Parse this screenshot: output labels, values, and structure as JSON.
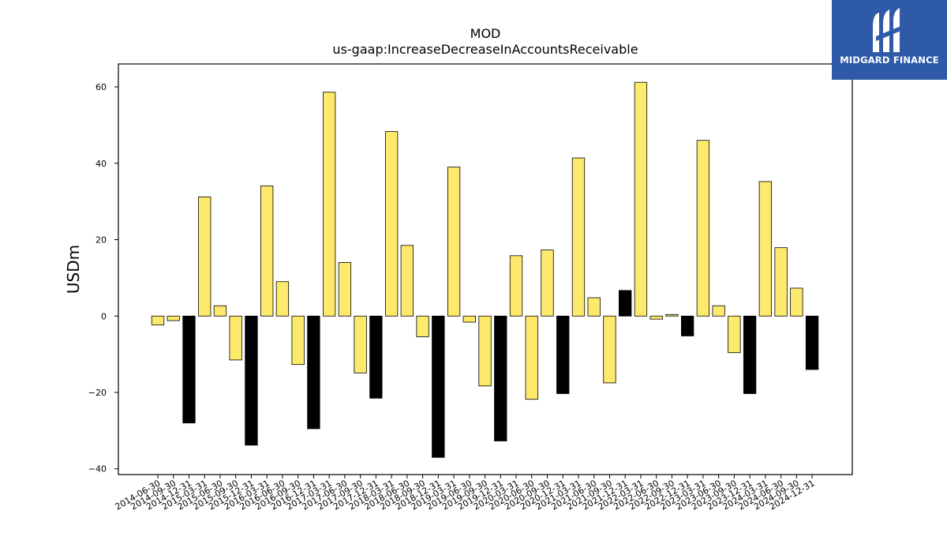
{
  "chart_data": {
    "type": "bar",
    "title": "MOD",
    "subtitle": "us-gaap:IncreaseDecreaseInAccountsReceivable",
    "xlabel": "",
    "ylabel": "USDm",
    "ylim": [
      -41.5,
      66
    ],
    "yticks": [
      -40,
      -20,
      0,
      20,
      40,
      60
    ],
    "grid": false,
    "categories": [
      "2014-06-30",
      "2014-09-30",
      "2014-12-31",
      "2015-03-31",
      "2015-06-30",
      "2015-09-30",
      "2015-12-31",
      "2016-03-31",
      "2016-06-30",
      "2016-09-30",
      "2016-12-31",
      "2017-03-31",
      "2017-06-30",
      "2017-09-30",
      "2017-12-31",
      "2018-03-31",
      "2018-06-30",
      "2018-09-30",
      "2018-12-31",
      "2019-03-31",
      "2019-06-30",
      "2019-09-30",
      "2019-12-31",
      "2020-03-31",
      "2020-06-30",
      "2020-09-30",
      "2020-12-31",
      "2021-03-31",
      "2021-06-30",
      "2021-09-30",
      "2021-12-31",
      "2022-03-31",
      "2022-06-30",
      "2022-09-30",
      "2022-12-31",
      "2023-03-31",
      "2023-06-30",
      "2023-09-30",
      "2023-12-31",
      "2024-03-31",
      "2024-06-30",
      "2024-09-30",
      "2024-12-31"
    ],
    "values": [
      -2.3,
      -1.2,
      -28,
      31.2,
      2.7,
      -11.5,
      -33.8,
      34.1,
      9,
      -12.7,
      -29.5,
      58.6,
      14,
      -14.9,
      -21.5,
      48.3,
      18.5,
      -5.4,
      -37,
      39,
      -1.6,
      -18.3,
      -32.7,
      15.8,
      -21.8,
      17.3,
      -20.3,
      41.4,
      4.8,
      -17.5,
      6.7,
      61.2,
      -0.8,
      0.4,
      -5.2,
      46,
      2.7,
      -9.6,
      -20.3,
      35.2,
      17.9,
      7.3,
      -14
    ],
    "highlight_color": "#000000",
    "bar_color": "#fde96c",
    "highlight_categories": [
      "2014-12-31",
      "2015-12-31",
      "2016-12-31",
      "2017-12-31",
      "2018-12-31",
      "2019-12-31",
      "2020-12-31",
      "2021-12-31",
      "2022-12-31",
      "2023-12-31",
      "2024-12-31"
    ]
  },
  "logo": {
    "text": "MIDGARD FINANCE",
    "icon": "midgard-logo-icon",
    "background": "#2f5aa8"
  }
}
